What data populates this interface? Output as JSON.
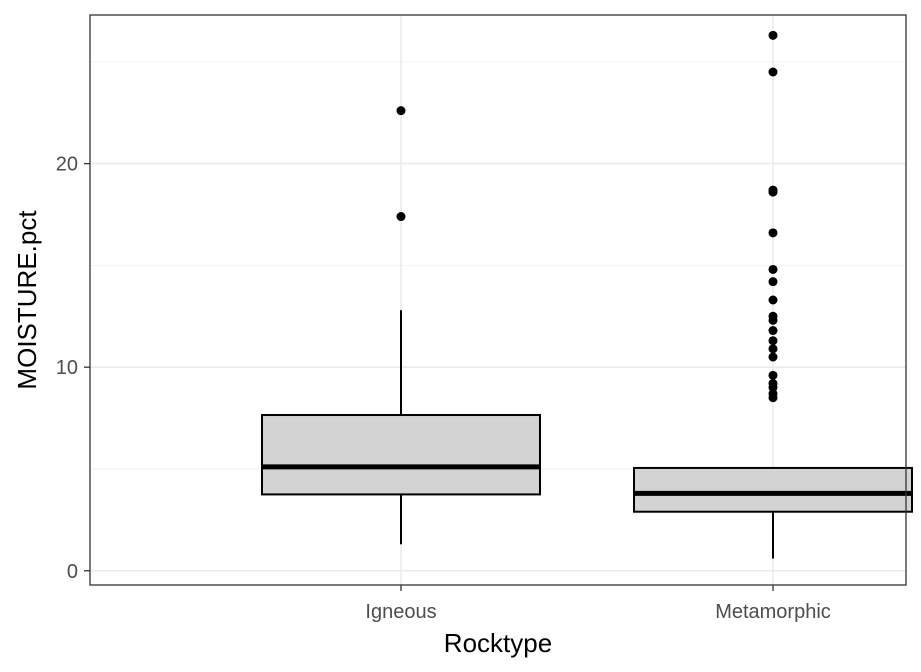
{
  "chart_data": {
    "type": "boxplot",
    "title": "",
    "xlabel": "Rocktype",
    "ylabel": "MOISTURE.pct",
    "categories": [
      "Igneous",
      "Metamorphic"
    ],
    "ylim": [
      -0.7,
      27.3
    ],
    "yticks": [
      0,
      10,
      20
    ],
    "grid": true,
    "legend": "none",
    "box_fill": "#d3d3d3",
    "line_color": "#000000",
    "boxes": [
      {
        "category": "Igneous",
        "whisker_low": 1.3,
        "q1": 3.75,
        "median": 5.1,
        "q3": 7.65,
        "whisker_high": 12.8,
        "outliers": [
          17.4,
          22.6
        ]
      },
      {
        "category": "Metamorphic",
        "whisker_low": 0.6,
        "q1": 2.9,
        "median": 3.8,
        "q3": 5.05,
        "whisker_high": 5.05,
        "outliers": [
          8.5,
          8.7,
          9.0,
          9.2,
          9.6,
          10.5,
          10.9,
          11.3,
          11.8,
          12.3,
          12.5,
          13.3,
          14.2,
          14.8,
          16.6,
          18.6,
          18.7,
          24.5,
          26.3
        ]
      }
    ]
  }
}
